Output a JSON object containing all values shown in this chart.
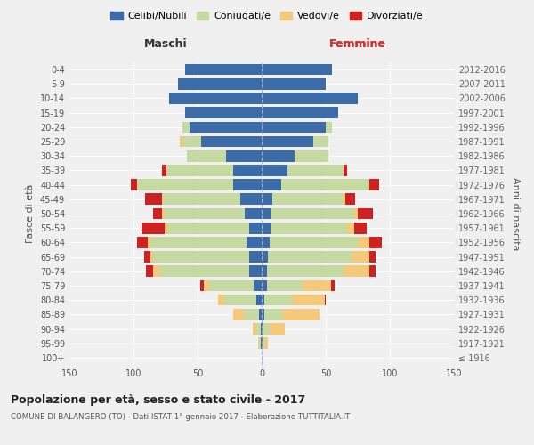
{
  "age_groups": [
    "100+",
    "95-99",
    "90-94",
    "85-89",
    "80-84",
    "75-79",
    "70-74",
    "65-69",
    "60-64",
    "55-59",
    "50-54",
    "45-49",
    "40-44",
    "35-39",
    "30-34",
    "25-29",
    "20-24",
    "15-19",
    "10-14",
    "5-9",
    "0-4"
  ],
  "birth_years": [
    "≤ 1916",
    "1917-1921",
    "1922-1926",
    "1927-1931",
    "1932-1936",
    "1937-1941",
    "1942-1946",
    "1947-1951",
    "1952-1956",
    "1957-1961",
    "1962-1966",
    "1967-1971",
    "1972-1976",
    "1977-1981",
    "1982-1986",
    "1987-1991",
    "1992-1996",
    "1997-2001",
    "2002-2006",
    "2007-2011",
    "2012-2016"
  ],
  "maschi": {
    "celibi": [
      0,
      1,
      1,
      2,
      4,
      6,
      10,
      10,
      12,
      10,
      13,
      17,
      22,
      22,
      28,
      47,
      56,
      60,
      72,
      65,
      60
    ],
    "coniugati": [
      0,
      1,
      3,
      12,
      25,
      35,
      70,
      75,
      75,
      63,
      63,
      60,
      75,
      52,
      30,
      15,
      6,
      0,
      0,
      0,
      0
    ],
    "vedovi": [
      0,
      1,
      3,
      8,
      5,
      4,
      5,
      2,
      2,
      3,
      2,
      1,
      0,
      0,
      0,
      2,
      0,
      0,
      0,
      0,
      0
    ],
    "divorziati": [
      0,
      0,
      0,
      0,
      0,
      3,
      5,
      5,
      8,
      18,
      7,
      13,
      5,
      4,
      0,
      0,
      0,
      0,
      0,
      0,
      0
    ]
  },
  "femmine": {
    "nubili": [
      0,
      1,
      1,
      2,
      2,
      4,
      4,
      5,
      6,
      7,
      7,
      8,
      15,
      20,
      26,
      40,
      50,
      60,
      75,
      50,
      55
    ],
    "coniugate": [
      0,
      1,
      5,
      15,
      22,
      28,
      60,
      65,
      70,
      60,
      65,
      55,
      68,
      44,
      26,
      12,
      5,
      0,
      0,
      0,
      0
    ],
    "vedove": [
      0,
      3,
      12,
      28,
      25,
      22,
      20,
      14,
      8,
      5,
      3,
      2,
      1,
      0,
      0,
      0,
      0,
      0,
      0,
      0,
      0
    ],
    "divorziate": [
      0,
      0,
      0,
      0,
      1,
      3,
      5,
      5,
      10,
      10,
      12,
      8,
      8,
      3,
      0,
      0,
      0,
      0,
      0,
      0,
      0
    ]
  },
  "colors": {
    "celibi": "#3b6ca8",
    "coniugati": "#c5d9a0",
    "vedovi": "#f5c97a",
    "divorziati": "#cc2222"
  },
  "title": "Popolazione per età, sesso e stato civile - 2017",
  "subtitle": "COMUNE DI BALANGERO (TO) - Dati ISTAT 1° gennaio 2017 - Elaborazione TUTTITALIA.IT",
  "xlabel_left": "Maschi",
  "xlabel_right": "Femmine",
  "ylabel_left": "Fasce di età",
  "ylabel_right": "Anni di nascita",
  "xlim": 150,
  "legend_labels": [
    "Celibi/Nubili",
    "Coniugati/e",
    "Vedovi/e",
    "Divorziati/e"
  ],
  "background_color": "#f0f0f0"
}
